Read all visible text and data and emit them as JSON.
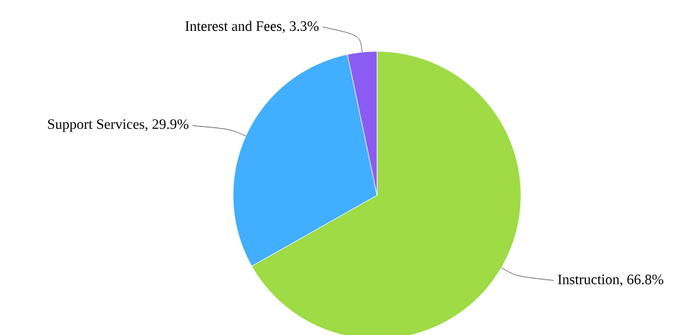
{
  "chart_data": {
    "type": "pie",
    "categories": [
      "Instruction",
      "Support Services",
      "Interest and Fees"
    ],
    "values": [
      66.8,
      29.9,
      3.3
    ],
    "colors": [
      "#9edb45",
      "#41aefe",
      "#8b5cf3"
    ],
    "value_labels": [
      ", 66.8%",
      ", 29.9%",
      ", 3.3%"
    ]
  }
}
